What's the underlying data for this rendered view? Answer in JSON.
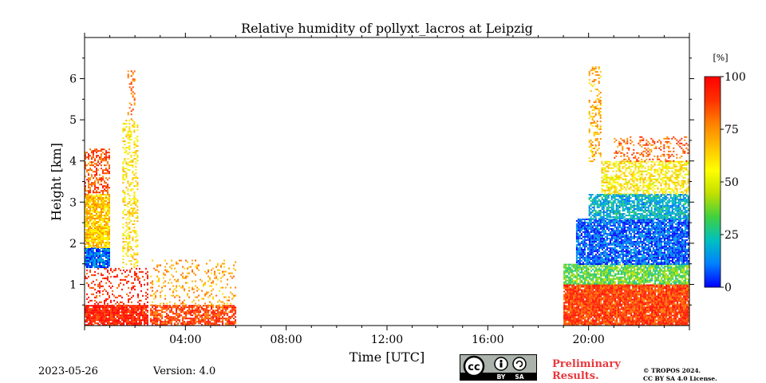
{
  "chart_data": {
    "type": "heatmap",
    "title": "Relative humidity of pollyxt_lacros at Leipzig",
    "xlabel": "Time [UTC]",
    "ylabel": "Height [km]",
    "xlim_hours": [
      0,
      24
    ],
    "ylim_km": [
      0,
      7
    ],
    "x_ticks": [
      {
        "hour": 4,
        "label": "04:00"
      },
      {
        "hour": 8,
        "label": "08:00"
      },
      {
        "hour": 12,
        "label": "12:00"
      },
      {
        "hour": 16,
        "label": "16:00"
      },
      {
        "hour": 20,
        "label": "20:00"
      }
    ],
    "y_ticks": [
      {
        "km": 1,
        "label": "1"
      },
      {
        "km": 2,
        "label": "2"
      },
      {
        "km": 3,
        "label": "3"
      },
      {
        "km": 4,
        "label": "4"
      },
      {
        "km": 5,
        "label": "5"
      },
      {
        "km": 6,
        "label": "6"
      }
    ],
    "colorbar": {
      "unit_label": "[%]",
      "range": [
        0,
        100
      ],
      "ticks": [
        {
          "value": 0,
          "label": "0"
        },
        {
          "value": 25,
          "label": "25"
        },
        {
          "value": 50,
          "label": "50"
        },
        {
          "value": 75,
          "label": "75"
        },
        {
          "value": 100,
          "label": "100"
        }
      ],
      "colors": [
        "#0000ff",
        "#0080ff",
        "#00c0c0",
        "#40d040",
        "#c0e000",
        "#ffff00",
        "#ffc000",
        "#ff8000",
        "#ff3000",
        "#ff0000"
      ]
    },
    "data_regions": [
      {
        "t_start": 0.0,
        "t_end": 2.5,
        "h_bottom": 0.0,
        "h_top": 0.5,
        "rh": 95,
        "density": 0.9
      },
      {
        "t_start": 0.0,
        "t_end": 2.5,
        "h_bottom": 0.5,
        "h_top": 1.4,
        "rh": 92,
        "density": 0.25
      },
      {
        "t_start": 0.0,
        "t_end": 1.0,
        "h_bottom": 1.4,
        "h_top": 1.9,
        "rh": 10,
        "density": 0.9
      },
      {
        "t_start": 0.0,
        "t_end": 1.0,
        "h_bottom": 1.9,
        "h_top": 3.2,
        "rh": 65,
        "density": 0.85
      },
      {
        "t_start": 0.0,
        "t_end": 1.0,
        "h_bottom": 3.2,
        "h_top": 4.3,
        "rh": 85,
        "density": 0.5
      },
      {
        "t_start": 1.5,
        "t_end": 2.1,
        "h_bottom": 1.4,
        "h_top": 5.0,
        "rh": 60,
        "density": 0.35
      },
      {
        "t_start": 1.7,
        "t_end": 2.0,
        "h_bottom": 5.0,
        "h_top": 6.2,
        "rh": 80,
        "density": 0.25
      },
      {
        "t_start": 2.6,
        "t_end": 6.0,
        "h_bottom": 0.0,
        "h_top": 0.5,
        "rh": 88,
        "density": 0.75
      },
      {
        "t_start": 2.6,
        "t_end": 6.0,
        "h_bottom": 0.5,
        "h_top": 1.6,
        "rh": 72,
        "density": 0.18
      },
      {
        "t_start": 19.0,
        "t_end": 24.0,
        "h_bottom": 0.0,
        "h_top": 1.0,
        "rh": 88,
        "density": 0.95
      },
      {
        "t_start": 19.0,
        "t_end": 24.0,
        "h_bottom": 1.0,
        "h_top": 1.5,
        "rh": 35,
        "density": 0.8
      },
      {
        "t_start": 19.5,
        "t_end": 24.0,
        "h_bottom": 1.5,
        "h_top": 2.6,
        "rh": 8,
        "density": 0.85
      },
      {
        "t_start": 20.0,
        "t_end": 24.0,
        "h_bottom": 2.6,
        "h_top": 3.2,
        "rh": 20,
        "density": 0.8
      },
      {
        "t_start": 20.5,
        "t_end": 24.0,
        "h_bottom": 3.2,
        "h_top": 4.0,
        "rh": 58,
        "density": 0.55
      },
      {
        "t_start": 21.0,
        "t_end": 24.0,
        "h_bottom": 4.0,
        "h_top": 4.6,
        "rh": 82,
        "density": 0.3
      },
      {
        "t_start": 20.0,
        "t_end": 20.5,
        "h_bottom": 4.0,
        "h_top": 6.3,
        "rh": 70,
        "density": 0.3
      }
    ]
  },
  "footer": {
    "date": "2023-05-26",
    "version": "Version: 4.0",
    "license_badge": {
      "cc": "cc",
      "by": "BY",
      "sa": "SA"
    },
    "preliminary": "Preliminary Results.",
    "copyright_line1": "© TROPOS 2024.",
    "copyright_line2": "CC BY SA 4.0 License."
  }
}
